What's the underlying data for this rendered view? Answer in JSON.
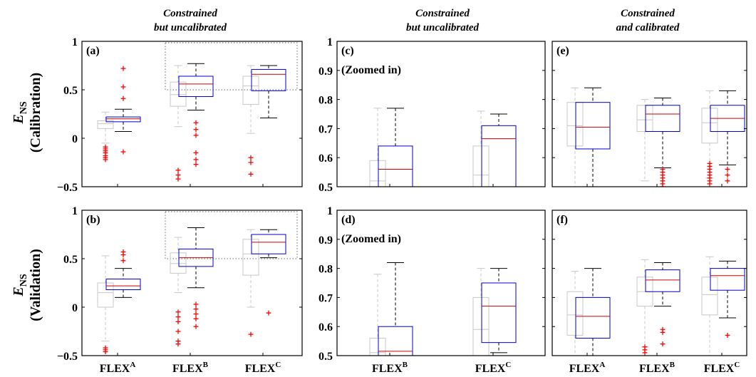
{
  "figure": {
    "column_titles": [
      {
        "line1": "Constrained",
        "line2": "but uncalibrated"
      },
      {
        "line1": "Constrained",
        "line2": "but uncalibrated"
      },
      {
        "line1": "Constrained",
        "line2": "and calibrated"
      }
    ],
    "row_labels": [
      {
        "symbol": "E",
        "subscript": "NS",
        "text": "(Calibration)"
      },
      {
        "symbol": "E",
        "subscript": "NS",
        "text": "(Validation)"
      }
    ],
    "colors": {
      "unconstrained_box": "#c8c8c8",
      "constrained_box": "#0000cc",
      "median": "#cc0000",
      "outlier": "#ff0000",
      "whisker": "#000000",
      "axes": "#000000",
      "zoom_frame": "#666666"
    }
  },
  "chart_data": [
    {
      "type": "box",
      "panel_label": "(a)",
      "annotation": "",
      "ylim": [
        -0.5,
        1
      ],
      "yticks": [
        -0.5,
        0,
        0.5,
        1
      ],
      "ytick_labels": [
        "−0.5",
        "0",
        "0.5",
        "1"
      ],
      "categories": [
        {
          "name": "FLEX",
          "sup": "A"
        },
        {
          "name": "FLEX",
          "sup": "B"
        },
        {
          "name": "FLEX",
          "sup": "C"
        }
      ],
      "zoom_region": {
        "from_category": 1,
        "to_category": 2,
        "y_low": 0.5,
        "y_high": 1
      },
      "groups": [
        {
          "gray": {
            "lw": -0.05,
            "q1": 0.1,
            "med": 0.15,
            "q3": 0.18,
            "hw": 0.27,
            "outliers": [
              -0.22,
              -0.2,
              -0.18,
              -0.15,
              -0.13,
              -0.11,
              -0.09
            ]
          },
          "blue": {
            "lw": 0.07,
            "q1": 0.17,
            "med": 0.2,
            "q3": 0.22,
            "hw": 0.3,
            "outliers": [
              -0.14,
              0.41,
              0.53,
              0.72
            ]
          }
        },
        {
          "gray": {
            "lw": 0.12,
            "q1": 0.33,
            "med": 0.45,
            "q3": 0.58,
            "hw": 0.75,
            "outliers": [
              -0.42,
              -0.38,
              -0.33
            ]
          },
          "blue": {
            "lw": 0.29,
            "q1": 0.43,
            "med": 0.56,
            "q3": 0.64,
            "hw": 0.77,
            "outliers": [
              -0.27,
              -0.22,
              -0.15,
              0.03,
              0.09,
              0.16
            ]
          }
        },
        {
          "gray": {
            "lw": 0.05,
            "q1": 0.35,
            "med": 0.54,
            "q3": 0.64,
            "hw": 0.75,
            "outliers": [
              -0.37,
              -0.25,
              -0.2
            ]
          },
          "blue": {
            "lw": 0.21,
            "q1": 0.49,
            "med": 0.66,
            "q3": 0.71,
            "hw": 0.75,
            "outliers": []
          }
        }
      ]
    },
    {
      "type": "box",
      "panel_label": "(c)",
      "annotation": "(Zoomed in)",
      "ylim": [
        0.5,
        1
      ],
      "yticks": [
        0.5,
        0.6,
        0.7,
        0.8,
        0.9,
        1
      ],
      "ytick_labels": [
        "0.5",
        "0.6",
        "0.7",
        "0.8",
        "0.9",
        "1"
      ],
      "categories": [
        {
          "name": "FLEX",
          "sup": "B"
        },
        {
          "name": "FLEX",
          "sup": "C"
        }
      ],
      "zoom_region": null,
      "groups": [
        {
          "gray": {
            "lw": 0.45,
            "q1": 0.45,
            "med": 0.52,
            "q3": 0.59,
            "hw": 0.77,
            "outliers": []
          },
          "blue": {
            "lw": 0.45,
            "q1": 0.45,
            "med": 0.56,
            "q3": 0.64,
            "hw": 0.77,
            "outliers": []
          }
        },
        {
          "gray": {
            "lw": 0.45,
            "q1": 0.45,
            "med": 0.54,
            "q3": 0.64,
            "hw": 0.76,
            "outliers": []
          },
          "blue": {
            "lw": 0.45,
            "q1": 0.45,
            "med": 0.665,
            "q3": 0.71,
            "hw": 0.75,
            "outliers": []
          }
        }
      ]
    },
    {
      "type": "box",
      "panel_label": "(e)",
      "annotation": "",
      "ylim": [
        0.5,
        1
      ],
      "yticks": [
        0.5,
        0.6,
        0.7,
        0.8,
        0.9,
        1
      ],
      "ytick_labels": [],
      "categories": [
        {
          "name": "FLEX",
          "sup": "A"
        },
        {
          "name": "FLEX",
          "sup": "B"
        },
        {
          "name": "FLEX",
          "sup": "C"
        }
      ],
      "zoom_region": null,
      "groups": [
        {
          "gray": {
            "lw": 0.45,
            "q1": 0.64,
            "med": 0.71,
            "q3": 0.79,
            "hw": 0.84,
            "outliers": []
          },
          "blue": {
            "lw": 0.45,
            "q1": 0.63,
            "med": 0.705,
            "q3": 0.79,
            "hw": 0.84,
            "outliers": []
          }
        },
        {
          "gray": {
            "lw": 0.52,
            "q1": 0.69,
            "med": 0.73,
            "q3": 0.78,
            "hw": 0.8,
            "outliers": []
          },
          "blue": {
            "lw": 0.565,
            "q1": 0.69,
            "med": 0.75,
            "q3": 0.78,
            "hw": 0.805,
            "outliers": [
              0.5,
              0.51,
              0.52,
              0.53,
              0.54,
              0.55,
              0.56
            ]
          }
        },
        {
          "gray": {
            "lw": 0.53,
            "q1": 0.65,
            "med": 0.72,
            "q3": 0.77,
            "hw": 0.83,
            "outliers": [
              0.51,
              0.52,
              0.53,
              0.54,
              0.55,
              0.56,
              0.57,
              0.58
            ]
          },
          "blue": {
            "lw": 0.575,
            "q1": 0.69,
            "med": 0.735,
            "q3": 0.78,
            "hw": 0.83,
            "outliers": [
              0.52,
              0.54,
              0.56
            ]
          }
        }
      ]
    },
    {
      "type": "box",
      "panel_label": "(b)",
      "annotation": "",
      "ylim": [
        -0.5,
        1
      ],
      "yticks": [
        -0.5,
        0,
        0.5,
        1
      ],
      "ytick_labels": [
        "−0.5",
        "0",
        "0.5",
        "1"
      ],
      "categories": [
        {
          "name": "FLEX",
          "sup": "A"
        },
        {
          "name": "FLEX",
          "sup": "B"
        },
        {
          "name": "FLEX",
          "sup": "C"
        }
      ],
      "zoom_region": {
        "from_category": 1,
        "to_category": 2,
        "y_low": 0.5,
        "y_high": 1
      },
      "groups": [
        {
          "gray": {
            "lw": -0.35,
            "q1": 0.0,
            "med": 0.15,
            "q3": 0.25,
            "hw": 0.53,
            "outliers": [
              -0.46,
              -0.44,
              -0.42
            ]
          },
          "blue": {
            "lw": 0.1,
            "q1": 0.18,
            "med": 0.22,
            "q3": 0.29,
            "hw": 0.4,
            "outliers": [
              0.48,
              0.54,
              0.57
            ]
          }
        },
        {
          "gray": {
            "lw": 0.15,
            "q1": 0.35,
            "med": 0.45,
            "q3": 0.56,
            "hw": 0.72,
            "outliers": [
              -0.38,
              -0.35,
              -0.25,
              -0.15,
              -0.1,
              -0.05
            ]
          },
          "blue": {
            "lw": 0.2,
            "q1": 0.42,
            "med": 0.51,
            "q3": 0.6,
            "hw": 0.82,
            "outliers": [
              -0.2,
              -0.12,
              -0.07,
              -0.02,
              0.03
            ]
          }
        },
        {
          "gray": {
            "lw": 0.0,
            "q1": 0.33,
            "med": 0.55,
            "q3": 0.7,
            "hw": 0.8,
            "outliers": [
              -0.28
            ]
          },
          "blue": {
            "lw": 0.51,
            "q1": 0.55,
            "med": 0.67,
            "q3": 0.75,
            "hw": 0.8,
            "outliers": [
              -0.06
            ]
          }
        }
      ]
    },
    {
      "type": "box",
      "panel_label": "(d)",
      "annotation": "(Zoomed in)",
      "ylim": [
        0.5,
        1
      ],
      "yticks": [
        0.5,
        0.6,
        0.7,
        0.8,
        0.9,
        1
      ],
      "ytick_labels": [
        "0.5",
        "0.6",
        "0.7",
        "0.8",
        "0.9",
        "1"
      ],
      "categories": [
        {
          "name": "FLEX",
          "sup": "B"
        },
        {
          "name": "FLEX",
          "sup": "C"
        }
      ],
      "zoom_region": null,
      "groups": [
        {
          "gray": {
            "lw": 0.45,
            "q1": 0.45,
            "med": 0.51,
            "q3": 0.56,
            "hw": 0.78,
            "outliers": []
          },
          "blue": {
            "lw": 0.45,
            "q1": 0.45,
            "med": 0.515,
            "q3": 0.6,
            "hw": 0.82,
            "outliers": []
          }
        },
        {
          "gray": {
            "lw": 0.45,
            "q1": 0.45,
            "med": 0.59,
            "q3": 0.7,
            "hw": 0.8,
            "outliers": []
          },
          "blue": {
            "lw": 0.51,
            "q1": 0.545,
            "med": 0.67,
            "q3": 0.75,
            "hw": 0.8,
            "outliers": []
          }
        }
      ]
    },
    {
      "type": "box",
      "panel_label": "(f)",
      "annotation": "",
      "ylim": [
        0.5,
        1
      ],
      "yticks": [
        0.5,
        0.6,
        0.7,
        0.8,
        0.9,
        1
      ],
      "ytick_labels": [],
      "categories": [
        {
          "name": "FLEX",
          "sup": "A"
        },
        {
          "name": "FLEX",
          "sup": "B"
        },
        {
          "name": "FLEX",
          "sup": "C"
        }
      ],
      "zoom_region": null,
      "groups": [
        {
          "gray": {
            "lw": 0.45,
            "q1": 0.57,
            "med": 0.64,
            "q3": 0.72,
            "hw": 0.79,
            "outliers": []
          },
          "blue": {
            "lw": 0.45,
            "q1": 0.56,
            "med": 0.635,
            "q3": 0.7,
            "hw": 0.8,
            "outliers": []
          }
        },
        {
          "gray": {
            "lw": 0.53,
            "q1": 0.67,
            "med": 0.72,
            "q3": 0.77,
            "hw": 0.83,
            "outliers": [
              0.51,
              0.52,
              0.53
            ]
          },
          "blue": {
            "lw": 0.67,
            "q1": 0.72,
            "med": 0.76,
            "q3": 0.795,
            "hw": 0.82,
            "outliers": [
              0.54,
              0.58,
              0.59
            ]
          }
        },
        {
          "gray": {
            "lw": 0.5,
            "q1": 0.64,
            "med": 0.71,
            "q3": 0.77,
            "hw": 0.84,
            "outliers": []
          },
          "blue": {
            "lw": 0.63,
            "q1": 0.725,
            "med": 0.775,
            "q3": 0.8,
            "hw": 0.825,
            "outliers": [
              0.57
            ]
          }
        }
      ]
    }
  ]
}
